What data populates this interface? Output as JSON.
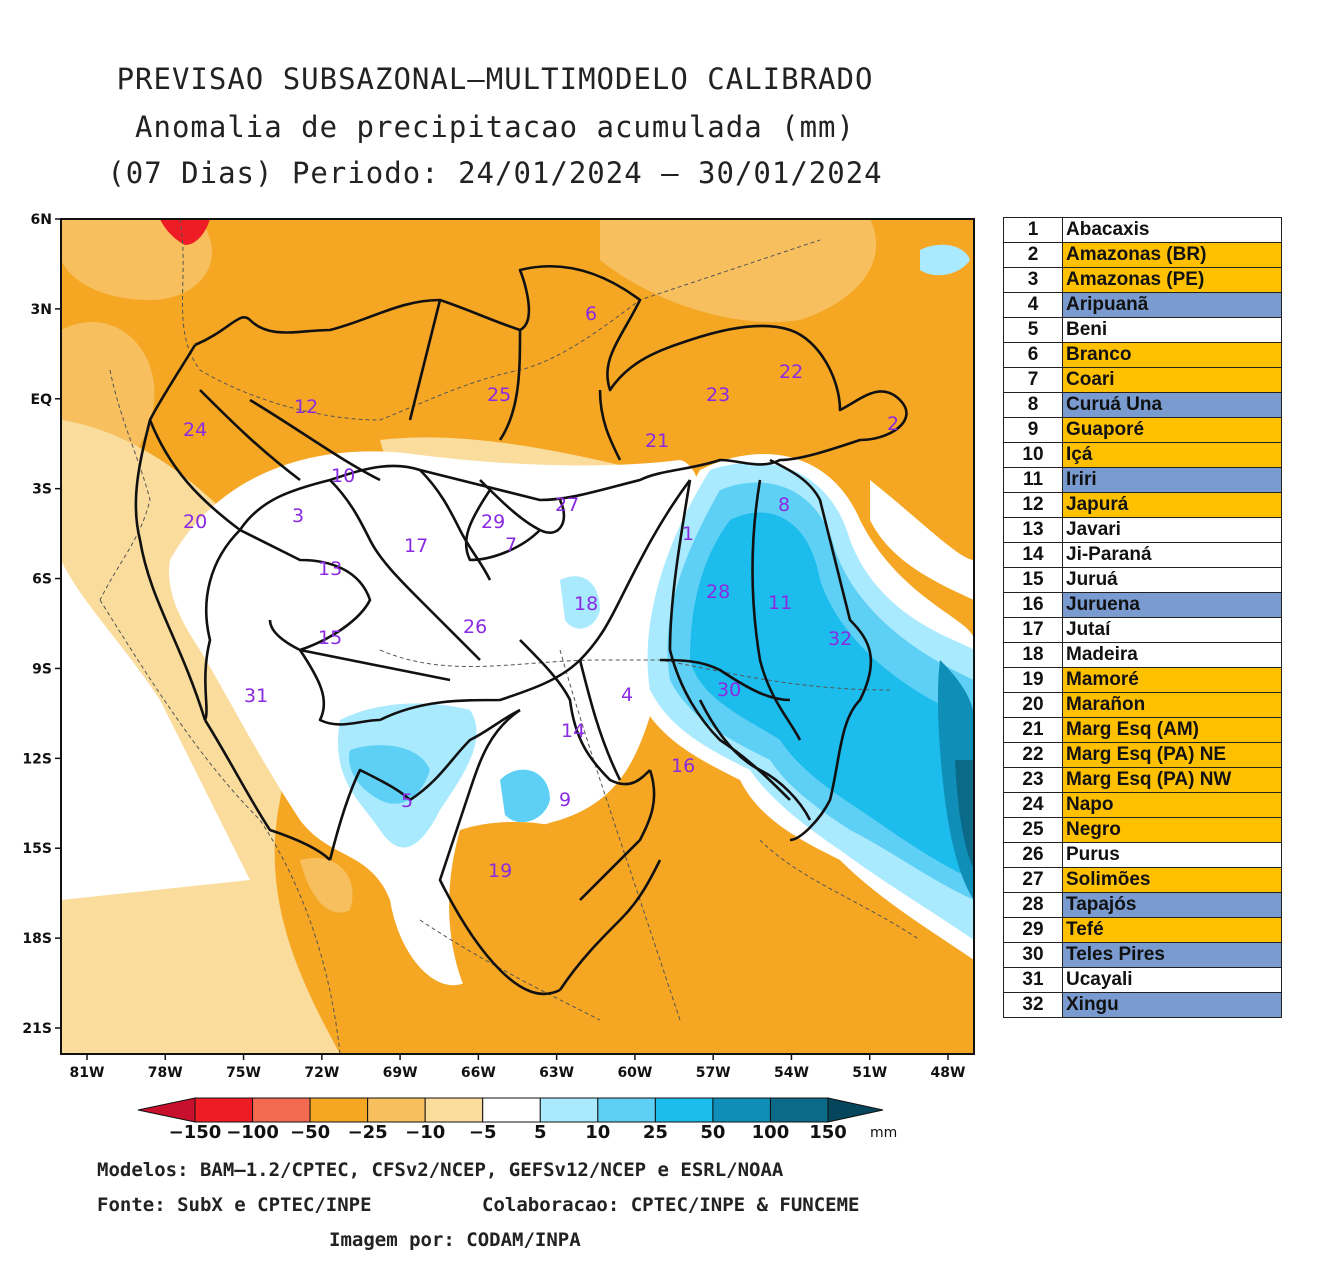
{
  "title": {
    "line1": "PREVISAO SUBSAZONAL—MULTIMODELO CALIBRADO",
    "line2": "Anomalia de precipitacao acumulada (mm)",
    "line3": "(07 Dias) Periodo: 24/01/2024 — 30/01/2024"
  },
  "axes": {
    "lat_labels": [
      "6N",
      "3N",
      "EQ",
      "3S",
      "6S",
      "9S",
      "12S",
      "15S",
      "18S",
      "21S"
    ],
    "lon_labels": [
      "81W",
      "78W",
      "75W",
      "72W",
      "69W",
      "66W",
      "63W",
      "60W",
      "57W",
      "54W",
      "51W",
      "48W"
    ]
  },
  "colorbar": {
    "labels": [
      "−150",
      "−100",
      "−50",
      "−25",
      "−10",
      "−5",
      "5",
      "10",
      "25",
      "50",
      "100",
      "150"
    ],
    "unit": "mm",
    "colors": [
      "#c8102e",
      "#ee1c24",
      "#f26a4f",
      "#f5a623",
      "#f7bf5e",
      "#fadc9c",
      "#ffffff",
      "#aaeaff",
      "#5fd0f5",
      "#1cbcec",
      "#0f8fb8",
      "#0b6a88",
      "#06465c"
    ]
  },
  "basins": [
    {
      "num": "1",
      "name": "Abacaxis",
      "color": "#ffffff"
    },
    {
      "num": "2",
      "name": "Amazonas (BR)",
      "color": "#ffc000"
    },
    {
      "num": "3",
      "name": "Amazonas (PE)",
      "color": "#ffc000"
    },
    {
      "num": "4",
      "name": "Aripuanã",
      "color": "#7a9bcf"
    },
    {
      "num": "5",
      "name": "Beni",
      "color": "#ffffff"
    },
    {
      "num": "6",
      "name": "Branco",
      "color": "#ffc000"
    },
    {
      "num": "7",
      "name": "Coari",
      "color": "#ffc000"
    },
    {
      "num": "8",
      "name": "Curuá Una",
      "color": "#7a9bcf"
    },
    {
      "num": "9",
      "name": "Guaporé",
      "color": "#ffc000"
    },
    {
      "num": "10",
      "name": "Içá",
      "color": "#ffc000"
    },
    {
      "num": "11",
      "name": "Iriri",
      "color": "#7a9bcf"
    },
    {
      "num": "12",
      "name": "Japurá",
      "color": "#ffc000"
    },
    {
      "num": "13",
      "name": "Javari",
      "color": "#ffffff"
    },
    {
      "num": "14",
      "name": "Ji-Paraná",
      "color": "#ffffff"
    },
    {
      "num": "15",
      "name": "Juruá",
      "color": "#ffffff"
    },
    {
      "num": "16",
      "name": "Juruena",
      "color": "#7a9bcf"
    },
    {
      "num": "17",
      "name": "Jutaí",
      "color": "#ffffff"
    },
    {
      "num": "18",
      "name": "Madeira",
      "color": "#ffffff"
    },
    {
      "num": "19",
      "name": "Mamoré",
      "color": "#ffc000"
    },
    {
      "num": "20",
      "name": "Marañon",
      "color": "#ffc000"
    },
    {
      "num": "21",
      "name": "Marg Esq (AM)",
      "color": "#ffc000"
    },
    {
      "num": "22",
      "name": "Marg Esq (PA) NE",
      "color": "#ffc000"
    },
    {
      "num": "23",
      "name": "Marg Esq (PA) NW",
      "color": "#ffc000"
    },
    {
      "num": "24",
      "name": "Napo",
      "color": "#ffc000"
    },
    {
      "num": "25",
      "name": "Negro",
      "color": "#ffc000"
    },
    {
      "num": "26",
      "name": "Purus",
      "color": "#ffffff"
    },
    {
      "num": "27",
      "name": "Solimões",
      "color": "#ffc000"
    },
    {
      "num": "28",
      "name": "Tapajós",
      "color": "#7a9bcf"
    },
    {
      "num": "29",
      "name": "Tefé",
      "color": "#ffc000"
    },
    {
      "num": "30",
      "name": "Teles Pires",
      "color": "#7a9bcf"
    },
    {
      "num": "31",
      "name": "Ucayali",
      "color": "#ffffff"
    },
    {
      "num": "32",
      "name": "Xingu",
      "color": "#7a9bcf"
    }
  ],
  "footer": {
    "models": "Modelos: BAM—1.2/CPTEC, CFSv2/NCEP, GEFSv12/NCEP e ESRL/NOAA",
    "source": "Fonte: SubX e CPTEC/INPE",
    "collab": "Colaboracao: CPTEC/INPE & FUNCEME",
    "image_by": "Imagem por: CODAM/INPA"
  }
}
